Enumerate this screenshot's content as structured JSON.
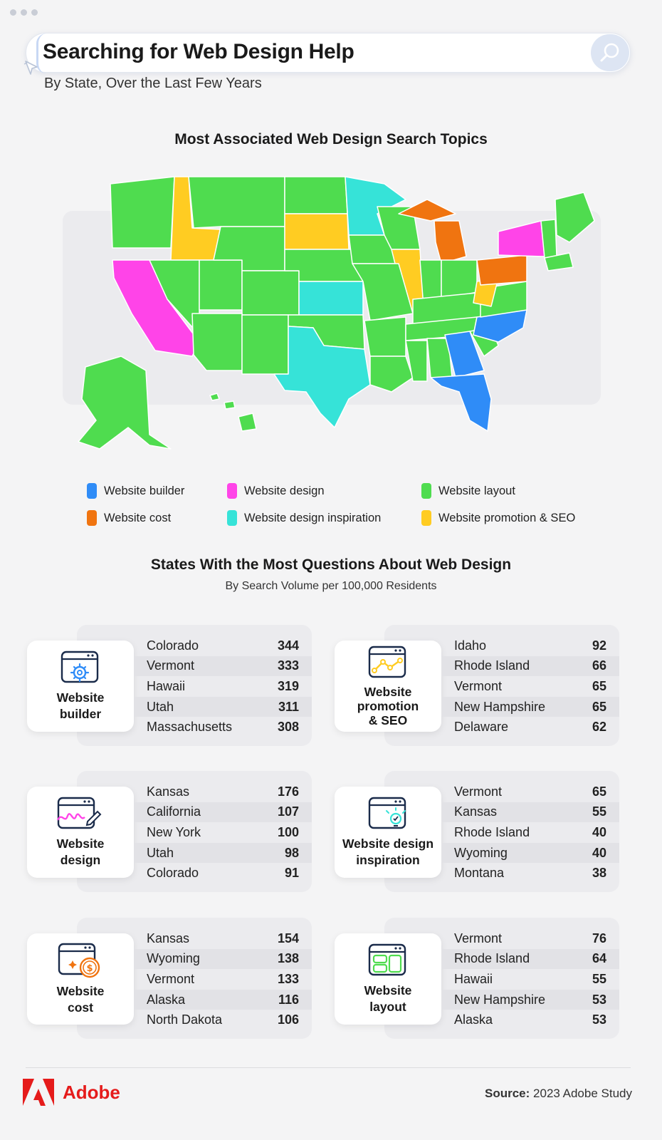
{
  "header": {
    "title": "Searching for Web Design Help",
    "subtitle": "By State, Over the Last Few Years"
  },
  "map_section": {
    "title": "Most Associated Web Design Search Topics"
  },
  "legend": [
    {
      "label": "Website builder",
      "color": "#2f8cf7"
    },
    {
      "label": "Website design",
      "color": "#ff44e8"
    },
    {
      "label": "Website layout",
      "color": "#4fdc4f"
    },
    {
      "label": "Website cost",
      "color": "#f07410"
    },
    {
      "label": "Website design inspiration",
      "color": "#36e3d8"
    },
    {
      "label": "Website promotion & SEO",
      "color": "#ffcc22"
    }
  ],
  "ranking_section": {
    "title": "States With the Most Questions About Web Design",
    "subtitle": "By Search Volume per 100,000 Residents"
  },
  "cards": [
    {
      "label_line1": "Website",
      "label_line2": "builder",
      "icon": "gear-browser-icon",
      "rows": [
        {
          "state": "Colorado",
          "value": "344"
        },
        {
          "state": "Vermont",
          "value": "333"
        },
        {
          "state": "Hawaii",
          "value": "319"
        },
        {
          "state": "Utah",
          "value": "311"
        },
        {
          "state": "Massachusetts",
          "value": "308"
        }
      ]
    },
    {
      "label_line1": "Website",
      "label_line2": "promotion",
      "label_line3": "& SEO",
      "icon": "chart-browser-icon",
      "rows": [
        {
          "state": "Idaho",
          "value": "92"
        },
        {
          "state": "Rhode Island",
          "value": "66"
        },
        {
          "state": "Vermont",
          "value": "65"
        },
        {
          "state": "New Hampshire",
          "value": "65"
        },
        {
          "state": "Delaware",
          "value": "62"
        }
      ]
    },
    {
      "label_line1": "Website",
      "label_line2": "design",
      "icon": "pen-browser-icon",
      "rows": [
        {
          "state": "Kansas",
          "value": "176"
        },
        {
          "state": "California",
          "value": "107"
        },
        {
          "state": "New York",
          "value": "100"
        },
        {
          "state": "Utah",
          "value": "98"
        },
        {
          "state": "Colorado",
          "value": "91"
        }
      ]
    },
    {
      "label_line1": "Website design",
      "label_line2": "inspiration",
      "icon": "lightbulb-browser-icon",
      "rows": [
        {
          "state": "Vermont",
          "value": "65"
        },
        {
          "state": "Kansas",
          "value": "55"
        },
        {
          "state": "Rhode Island",
          "value": "40"
        },
        {
          "state": "Wyoming",
          "value": "40"
        },
        {
          "state": "Montana",
          "value": "38"
        }
      ]
    },
    {
      "label_line1": "Website",
      "label_line2": "cost",
      "icon": "dollar-browser-icon",
      "rows": [
        {
          "state": "Kansas",
          "value": "154"
        },
        {
          "state": "Wyoming",
          "value": "138"
        },
        {
          "state": "Vermont",
          "value": "133"
        },
        {
          "state": "Alaska",
          "value": "116"
        },
        {
          "state": "North Dakota",
          "value": "106"
        }
      ]
    },
    {
      "label_line1": "Website",
      "label_line2": "layout",
      "icon": "layout-browser-icon",
      "rows": [
        {
          "state": "Vermont",
          "value": "76"
        },
        {
          "state": "Rhode Island",
          "value": "64"
        },
        {
          "state": "Hawaii",
          "value": "55"
        },
        {
          "state": "New Hampshire",
          "value": "53"
        },
        {
          "state": "Alaska",
          "value": "53"
        }
      ]
    }
  ],
  "footer": {
    "brand": "Adobe",
    "source_label": "Source:",
    "source_text": "2023 Adobe Study"
  }
}
